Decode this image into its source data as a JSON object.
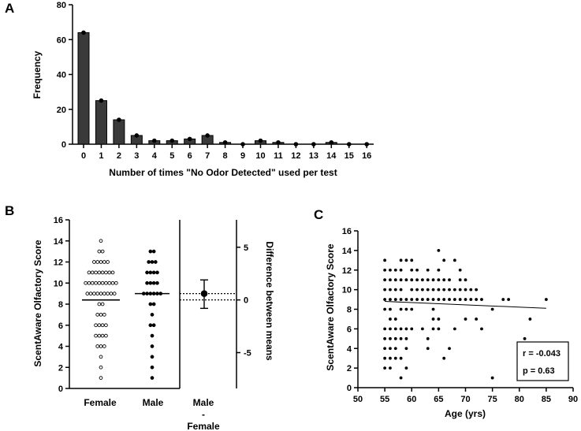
{
  "panels": {
    "a": "A",
    "b": "B",
    "c": "C"
  },
  "chart_data": [
    {
      "type": "bar",
      "panel": "A",
      "ylabel": "Frequency",
      "xlabel": "Number of times \"No Odor Detected\" used per test",
      "ylim": [
        0,
        80
      ],
      "yticks": [
        "0",
        "20",
        "40",
        "60",
        "80"
      ],
      "categories": [
        "0",
        "1",
        "2",
        "3",
        "4",
        "5",
        "6",
        "7",
        "8",
        "9",
        "10",
        "11",
        "12",
        "13",
        "14",
        "15",
        "16"
      ],
      "values": [
        64,
        25,
        14,
        5,
        2,
        2,
        3,
        5,
        1,
        0,
        2,
        1,
        0,
        0,
        1,
        0,
        0
      ]
    },
    {
      "type": "scatter",
      "panel": "B",
      "ylabel": "ScentAware Olfactory Score",
      "right_ylabel": "Difference between means",
      "ylim": [
        0,
        16
      ],
      "yticks": [
        "0",
        "2",
        "4",
        "6",
        "8",
        "10",
        "12",
        "14",
        "16"
      ],
      "right_yticks": [
        "5",
        "0",
        "-5"
      ],
      "groups": [
        "Female",
        "Male"
      ],
      "diff_label_line1": "Male",
      "diff_label_line2": "-",
      "diff_label_line3": "Female",
      "female_counts": {
        "1": 1,
        "2": 1,
        "3": 1,
        "4": 3,
        "5": 4,
        "6": 4,
        "7": 3,
        "8": 2,
        "9": 9,
        "10": 10,
        "11": 8,
        "12": 5,
        "13": 2,
        "14": 1
      },
      "male_counts": {
        "1": 1,
        "2": 1,
        "3": 1,
        "4": 1,
        "5": 1,
        "6": 2,
        "7": 1,
        "8": 2,
        "9": 6,
        "10": 4,
        "11": 4,
        "12": 3,
        "13": 2
      },
      "female_mean": 8.4,
      "male_mean": 9.0,
      "difference": 0.6,
      "difference_ci": [
        -0.8,
        1.9
      ]
    },
    {
      "type": "scatter",
      "panel": "C",
      "ylabel": "ScentAware Olfactory Score",
      "xlabel": "Age (yrs)",
      "xlim": [
        50,
        90
      ],
      "ylim": [
        0,
        16
      ],
      "xticks": [
        "50",
        "55",
        "60",
        "65",
        "70",
        "75",
        "80",
        "85",
        "90"
      ],
      "yticks": [
        "0",
        "2",
        "4",
        "6",
        "8",
        "10",
        "12",
        "14",
        "16"
      ],
      "r_text": "r = -0.043",
      "p_text": "p = 0.63",
      "trend": {
        "x0": 55,
        "y0": 8.8,
        "x1": 85,
        "y1": 8.1
      },
      "points": [
        [
          55,
          13
        ],
        [
          55,
          12
        ],
        [
          55,
          11
        ],
        [
          55,
          10
        ],
        [
          55,
          9
        ],
        [
          55,
          8
        ],
        [
          55,
          6
        ],
        [
          55,
          5
        ],
        [
          55,
          4
        ],
        [
          55,
          3
        ],
        [
          55,
          2
        ],
        [
          56,
          12
        ],
        [
          56,
          11
        ],
        [
          56,
          10
        ],
        [
          56,
          9
        ],
        [
          56,
          8
        ],
        [
          56,
          7
        ],
        [
          56,
          6
        ],
        [
          56,
          5
        ],
        [
          56,
          4
        ],
        [
          56,
          3
        ],
        [
          56,
          2
        ],
        [
          57,
          12
        ],
        [
          57,
          11
        ],
        [
          57,
          10
        ],
        [
          57,
          9
        ],
        [
          57,
          7
        ],
        [
          57,
          6
        ],
        [
          57,
          5
        ],
        [
          57,
          4
        ],
        [
          57,
          3
        ],
        [
          58,
          13
        ],
        [
          58,
          12
        ],
        [
          58,
          11
        ],
        [
          58,
          10
        ],
        [
          58,
          9
        ],
        [
          58,
          8
        ],
        [
          58,
          6
        ],
        [
          58,
          5
        ],
        [
          58,
          3
        ],
        [
          58,
          1
        ],
        [
          59,
          13
        ],
        [
          59,
          11
        ],
        [
          59,
          9
        ],
        [
          59,
          8
        ],
        [
          59,
          6
        ],
        [
          59,
          5
        ],
        [
          59,
          4
        ],
        [
          59,
          2
        ],
        [
          60,
          13
        ],
        [
          60,
          12
        ],
        [
          60,
          11
        ],
        [
          60,
          10
        ],
        [
          60,
          9
        ],
        [
          60,
          8
        ],
        [
          60,
          6
        ],
        [
          61,
          12
        ],
        [
          61,
          11
        ],
        [
          61,
          10
        ],
        [
          61,
          9
        ],
        [
          62,
          11
        ],
        [
          62,
          10
        ],
        [
          62,
          9
        ],
        [
          62,
          6
        ],
        [
          63,
          12
        ],
        [
          63,
          11
        ],
        [
          63,
          10
        ],
        [
          63,
          9
        ],
        [
          63,
          5
        ],
        [
          63,
          4
        ],
        [
          64,
          11
        ],
        [
          64,
          10
        ],
        [
          64,
          9
        ],
        [
          64,
          8
        ],
        [
          64,
          7
        ],
        [
          64,
          6
        ],
        [
          65,
          14
        ],
        [
          65,
          12
        ],
        [
          65,
          11
        ],
        [
          65,
          10
        ],
        [
          65,
          9
        ],
        [
          65,
          7
        ],
        [
          65,
          6
        ],
        [
          66,
          13
        ],
        [
          66,
          11
        ],
        [
          66,
          10
        ],
        [
          66,
          9
        ],
        [
          66,
          3
        ],
        [
          67,
          11
        ],
        [
          67,
          10
        ],
        [
          67,
          9
        ],
        [
          67,
          4
        ],
        [
          68,
          13
        ],
        [
          68,
          10
        ],
        [
          68,
          9
        ],
        [
          68,
          6
        ],
        [
          69,
          12
        ],
        [
          69,
          11
        ],
        [
          69,
          10
        ],
        [
          69,
          9
        ],
        [
          70,
          11
        ],
        [
          70,
          10
        ],
        [
          70,
          9
        ],
        [
          70,
          7
        ],
        [
          71,
          10
        ],
        [
          71,
          9
        ],
        [
          72,
          10
        ],
        [
          72,
          9
        ],
        [
          72,
          7
        ],
        [
          73,
          6
        ],
        [
          73,
          9
        ],
        [
          75,
          8
        ],
        [
          75,
          1
        ],
        [
          77,
          9
        ],
        [
          78,
          9
        ],
        [
          81,
          5
        ],
        [
          82,
          7
        ],
        [
          85,
          9
        ]
      ]
    }
  ]
}
